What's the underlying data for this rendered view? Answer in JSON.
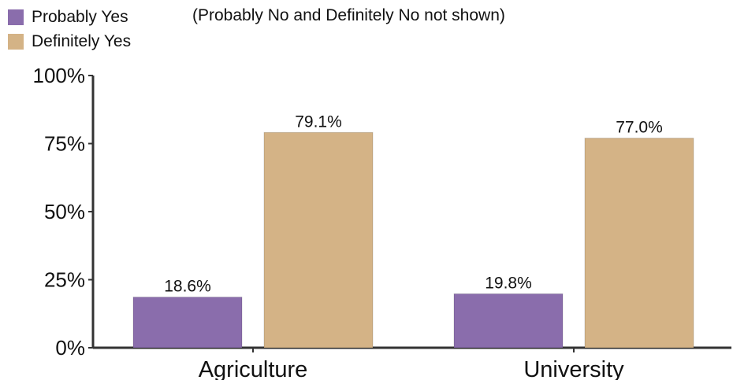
{
  "note": "(Probably No and Definitely No not shown)",
  "colors": {
    "probably_yes": "#8a6dac",
    "definitely_yes": "#d4b386",
    "axis": "#333333"
  },
  "chart_data": {
    "type": "bar",
    "categories": [
      "Agriculture",
      "University"
    ],
    "series": [
      {
        "name": "Probably Yes",
        "values": [
          18.6,
          19.8
        ],
        "labels": [
          "18.6%",
          "19.8%"
        ]
      },
      {
        "name": "Definitely Yes",
        "values": [
          79.1,
          77.0
        ],
        "labels": [
          "79.1%",
          "77.0%"
        ]
      }
    ],
    "ylim": [
      0,
      100
    ],
    "yticks": [
      0,
      25,
      50,
      75,
      100
    ],
    "ytick_labels": [
      "0%",
      "25%",
      "50%",
      "75%",
      "100%"
    ],
    "legend_position": "top-left",
    "grid": false
  }
}
